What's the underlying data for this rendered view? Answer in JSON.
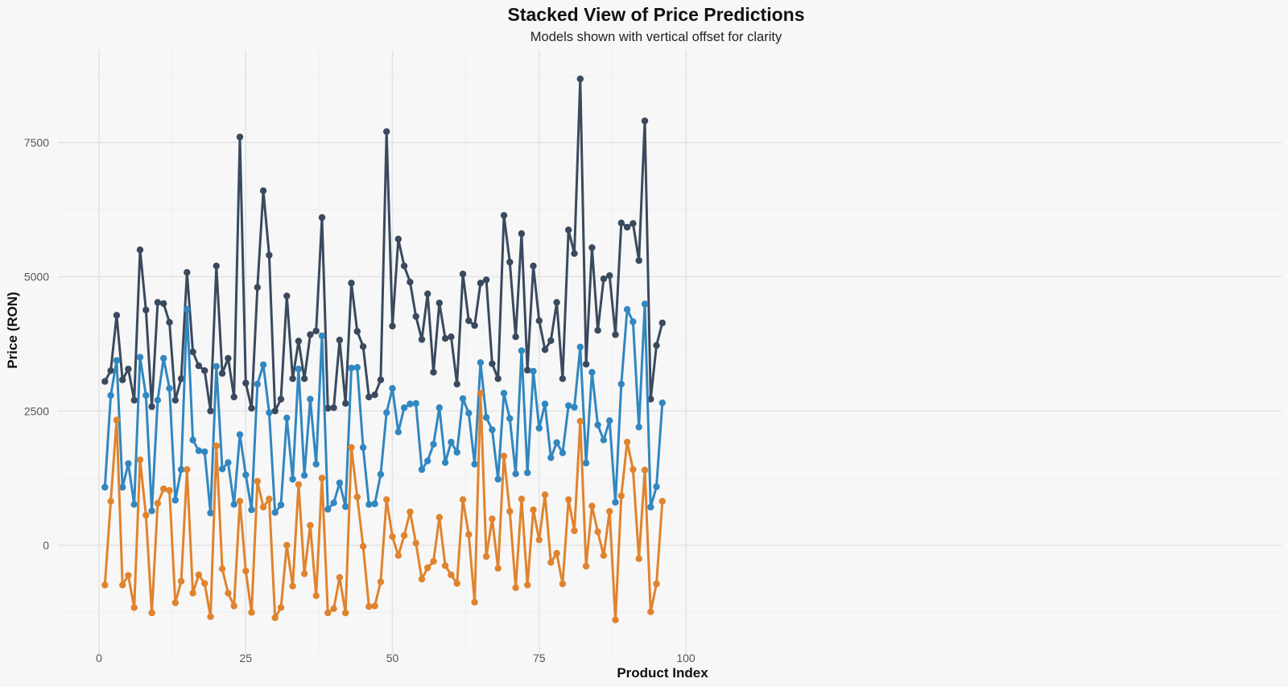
{
  "chart_data": {
    "type": "line",
    "title": "Stacked View of Price Predictions",
    "subtitle": "Models shown with vertical offset for clarity",
    "xlabel": "Product Index",
    "ylabel": "Price (RON)",
    "xlim": [
      0,
      100
    ],
    "ylim": [
      -1500,
      9000
    ],
    "x_ticks": [
      0,
      25,
      50,
      75,
      100
    ],
    "y_ticks": [
      0,
      2500,
      5000,
      7500
    ],
    "grid": true,
    "legend": "none",
    "x": [
      1,
      2,
      3,
      4,
      5,
      6,
      7,
      8,
      9,
      10,
      11,
      12,
      13,
      14,
      15,
      16,
      17,
      18,
      19,
      20,
      21,
      22,
      23,
      24,
      25,
      26,
      27,
      28,
      29,
      30,
      31,
      32,
      33,
      34,
      35,
      36,
      37,
      38,
      39,
      40,
      41,
      42,
      43,
      44,
      45,
      46,
      47,
      48,
      49,
      50,
      51,
      52,
      53,
      54,
      55,
      56,
      57,
      58,
      59,
      60,
      61,
      62,
      63,
      64,
      65,
      66,
      67,
      68,
      69,
      70,
      71,
      72,
      73,
      74,
      75,
      76,
      77,
      78,
      79,
      80,
      81,
      82,
      83,
      84,
      85,
      86,
      87,
      88,
      89,
      90,
      91,
      92,
      93,
      94,
      95,
      96
    ],
    "series": [
      {
        "color": "#3a4a5e",
        "values": [
          3050,
          3250,
          4280,
          3080,
          3280,
          2700,
          5500,
          4380,
          2580,
          4520,
          4500,
          4150,
          2700,
          3100,
          5080,
          3600,
          3340,
          3250,
          2500,
          5200,
          3200,
          3480,
          2760,
          7600,
          3020,
          2550,
          4800,
          6600,
          5400,
          2500,
          2720,
          4640,
          3100,
          3800,
          3100,
          3920,
          3990,
          6100,
          2550,
          2560,
          3820,
          2640,
          4880,
          3980,
          3700,
          2760,
          2800,
          3080,
          7700,
          4080,
          5700,
          5200,
          4900,
          4260,
          3830,
          4680,
          3220,
          4510,
          3850,
          3880,
          3000,
          5050,
          4180,
          4090,
          4880,
          4940,
          3380,
          3100,
          6140,
          5270,
          3880,
          5800,
          3260,
          5200,
          4180,
          3640,
          3810,
          4520,
          3100,
          5870,
          5430,
          8680,
          3370,
          5540,
          4000,
          4960,
          5020,
          3920,
          6000,
          5920,
          5990,
          5300,
          7900,
          2720,
          3720,
          4140
        ]
      },
      {
        "color": "#3187c0",
        "values": [
          1080,
          2790,
          3440,
          1080,
          1520,
          760,
          3500,
          2790,
          640,
          2700,
          3480,
          2920,
          840,
          1410,
          4390,
          1960,
          1760,
          1740,
          600,
          3330,
          1420,
          1540,
          760,
          2060,
          1310,
          660,
          3000,
          3360,
          2470,
          610,
          750,
          2370,
          1230,
          3280,
          1300,
          2720,
          1510,
          3900,
          670,
          790,
          1160,
          720,
          3300,
          3310,
          1820,
          760,
          770,
          1320,
          2470,
          2920,
          2110,
          2560,
          2630,
          2640,
          1410,
          1570,
          1880,
          2560,
          1540,
          1920,
          1730,
          2730,
          2460,
          1510,
          3400,
          2380,
          2150,
          1230,
          2830,
          2360,
          1330,
          3620,
          1350,
          3240,
          2180,
          2630,
          1630,
          1910,
          1720,
          2600,
          2570,
          3690,
          1530,
          3220,
          2240,
          1960,
          2320,
          800,
          3000,
          4390,
          4160,
          2200,
          4490,
          710,
          1090,
          2650
        ]
      },
      {
        "color": "#e0832d",
        "values": [
          -740,
          820,
          2330,
          -740,
          -560,
          -1160,
          1590,
          560,
          -1260,
          780,
          1050,
          1020,
          -1070,
          -670,
          1410,
          -890,
          -550,
          -710,
          -1330,
          1850,
          -440,
          -890,
          -1130,
          820,
          -480,
          -1250,
          1190,
          710,
          860,
          -1350,
          -1160,
          0,
          -760,
          1130,
          -530,
          370,
          -940,
          1250,
          -1260,
          -1180,
          -600,
          -1260,
          1820,
          900,
          -20,
          -1140,
          -1130,
          -680,
          850,
          160,
          -190,
          180,
          620,
          40,
          -630,
          -420,
          -300,
          520,
          -380,
          -550,
          -710,
          850,
          200,
          -1060,
          2830,
          -210,
          490,
          -430,
          1660,
          630,
          -790,
          860,
          -740,
          660,
          100,
          940,
          -320,
          -150,
          -720,
          850,
          270,
          2310,
          -390,
          730,
          250,
          -190,
          630,
          -1390,
          920,
          1920,
          1410,
          -250,
          1400,
          -1240,
          -720,
          820
        ]
      }
    ]
  }
}
